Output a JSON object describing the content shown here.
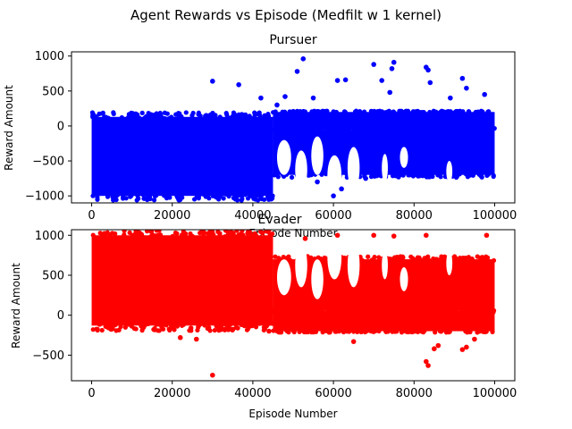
{
  "figure": {
    "title": "Agent Rewards vs Episode (Medfilt w 1 kernel)"
  },
  "chart_data": [
    {
      "type": "scatter",
      "title": "Pursuer",
      "xlabel": "Episode Number",
      "ylabel": "Reward Amount",
      "color": "#0000ff",
      "xlim": [
        -5000,
        105000
      ],
      "ylim": [
        -1100,
        1060
      ],
      "xticks": [
        0,
        20000,
        40000,
        60000,
        80000,
        100000
      ],
      "xtick_labels": [
        "0",
        "20000",
        "40000",
        "60000",
        "80000",
        "100000"
      ],
      "yticks": [
        -1000,
        -500,
        0,
        500,
        1000
      ],
      "ytick_labels": [
        "−1000",
        "−500",
        "0",
        "500",
        "1000"
      ],
      "grid": false,
      "dense_bands": [
        {
          "x_range": [
            0,
            45000
          ],
          "y_range": [
            -1000,
            130
          ]
        },
        {
          "x_range": [
            45000,
            100000
          ],
          "y_range": [
            -60,
            200
          ]
        },
        {
          "x_range": [
            45000,
            100000
          ],
          "y_range": [
            -700,
            -60
          ]
        }
      ],
      "points": [
        {
          "x": 30000,
          "y": 640
        },
        {
          "x": 36500,
          "y": 590
        },
        {
          "x": 42000,
          "y": 400
        },
        {
          "x": 46000,
          "y": 300
        },
        {
          "x": 48000,
          "y": 420
        },
        {
          "x": 51000,
          "y": 780
        },
        {
          "x": 52500,
          "y": 960
        },
        {
          "x": 55000,
          "y": 400
        },
        {
          "x": 61000,
          "y": 650
        },
        {
          "x": 63000,
          "y": 660
        },
        {
          "x": 70000,
          "y": 880
        },
        {
          "x": 72000,
          "y": 650
        },
        {
          "x": 74000,
          "y": 480
        },
        {
          "x": 74500,
          "y": 820
        },
        {
          "x": 75000,
          "y": 910
        },
        {
          "x": 83000,
          "y": 840
        },
        {
          "x": 83500,
          "y": 800
        },
        {
          "x": 84000,
          "y": 620
        },
        {
          "x": 89000,
          "y": 400
        },
        {
          "x": 92000,
          "y": 680
        },
        {
          "x": 93000,
          "y": 540
        },
        {
          "x": 97500,
          "y": 450
        },
        {
          "x": 56000,
          "y": -800
        },
        {
          "x": 60000,
          "y": -1000
        },
        {
          "x": 62000,
          "y": -900
        },
        {
          "x": 68000,
          "y": -750
        }
      ]
    },
    {
      "type": "scatter",
      "title": "Evader",
      "xlabel": "Episode Number",
      "ylabel": "Reward Amount",
      "color": "#ff0000",
      "xlim": [
        -5000,
        105000
      ],
      "ylim": [
        -820,
        1070
      ],
      "xticks": [
        0,
        20000,
        40000,
        60000,
        80000,
        100000
      ],
      "xtick_labels": [
        "0",
        "20000",
        "40000",
        "60000",
        "80000",
        "100000"
      ],
      "yticks": [
        -500,
        0,
        500,
        1000
      ],
      "ytick_labels": [
        "−500",
        "0",
        "500",
        "1000"
      ],
      "grid": false,
      "dense_bands": [
        {
          "x_range": [
            0,
            45000
          ],
          "y_range": [
            -130,
            1000
          ]
        },
        {
          "x_range": [
            45000,
            100000
          ],
          "y_range": [
            -200,
            60
          ]
        },
        {
          "x_range": [
            45000,
            100000
          ],
          "y_range": [
            60,
            700
          ]
        }
      ],
      "points": [
        {
          "x": 30000,
          "y": -750
        },
        {
          "x": 22000,
          "y": -280
        },
        {
          "x": 26000,
          "y": -300
        },
        {
          "x": 44000,
          "y": -200
        },
        {
          "x": 83000,
          "y": -580
        },
        {
          "x": 83500,
          "y": -630
        },
        {
          "x": 85000,
          "y": -420
        },
        {
          "x": 86000,
          "y": -380
        },
        {
          "x": 92000,
          "y": -430
        },
        {
          "x": 93000,
          "y": -400
        },
        {
          "x": 95000,
          "y": -300
        },
        {
          "x": 65000,
          "y": -330
        },
        {
          "x": 53000,
          "y": 960
        },
        {
          "x": 61000,
          "y": 1000
        },
        {
          "x": 70000,
          "y": 1000
        },
        {
          "x": 75000,
          "y": 990
        },
        {
          "x": 83000,
          "y": 1000
        },
        {
          "x": 98000,
          "y": 1000
        }
      ]
    }
  ]
}
